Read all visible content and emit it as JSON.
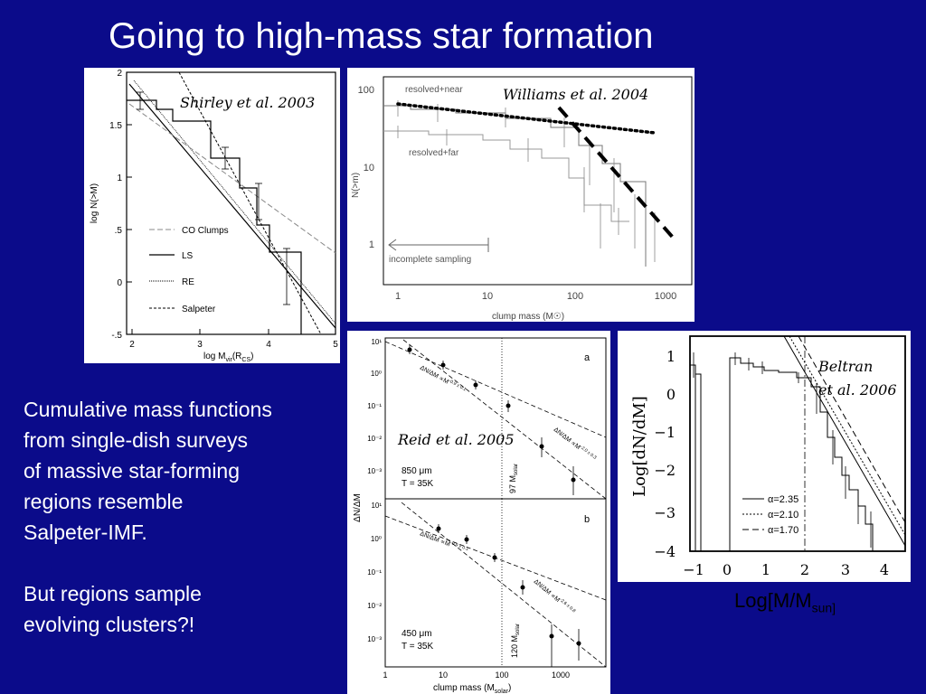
{
  "slide": {
    "title": "Going to high-mass star formation",
    "text": {
      "line1": "Cumulative mass functions",
      "line2": "from single-dish surveys",
      "line3": "of massive star-forming",
      "line4": "regions resemble",
      "line5": "Salpeter-IMF.",
      "line6": "But regions sample",
      "line7": "evolving clusters?!"
    },
    "beltran_xcaption": {
      "main": "Log[M/M",
      "sub": "sun]"
    }
  },
  "panels": {
    "shirley": {
      "citation": "Shirley et al. 2003",
      "ylabel": "log N(>M)",
      "xlabel_main": "log  M",
      "xlabel_sub": "vir",
      "xlabel_tail": "(R",
      "xlabel_sub2": "CS",
      "xlabel_close": ")",
      "yticks": [
        "2",
        "1.5",
        "1",
        ".5",
        "0",
        "-.5"
      ],
      "xticks": [
        "2",
        "3",
        "4",
        "5"
      ],
      "legend": [
        "CO Clumps",
        "LS",
        "RE",
        "Salpeter"
      ]
    },
    "williams": {
      "citation": "Williams et al. 2004",
      "ylabel": "N(>m)",
      "xlabel": "clump mass (M",
      "xlabel_sun": "☉",
      "xlabel_close": ")",
      "yticks": [
        "100",
        "10",
        "1"
      ],
      "xticks": [
        "1",
        "10",
        "100",
        "1000"
      ],
      "label_near": "resolved+near",
      "label_far": "resolved+far",
      "label_incomplete": "incomplete sampling"
    },
    "reid": {
      "citation": "Reid et al. 2005",
      "ylabel": "ΔN/ΔM",
      "xlabel": "clump mass (M",
      "xlabel_sub": "solar",
      "xlabel_close": ")",
      "xticks": [
        "1",
        "10",
        "100",
        "1000"
      ],
      "a": {
        "letter": "a",
        "fit1": "ΔN/ΔM ∝M",
        "fit1_exp": "-0.9 ± 0.1",
        "fit2": "ΔN/ΔM ∝M",
        "fit2_exp": "-2.0 ± 0.3",
        "wavelength": "850 μm",
        "temperature": "T = 35K",
        "break": "97 M",
        "break_sub": "solar",
        "yticks": [
          "10¹",
          "10⁰",
          "10⁻¹",
          "10⁻²",
          "10⁻³"
        ]
      },
      "b": {
        "letter": "b",
        "fit1": "ΔN/ΔM ∝M",
        "fit1_exp": "-0.9 ± 0.1",
        "fit2": "ΔN/ΔM ∝M",
        "fit2_exp": "-2.6 ± 0.8",
        "wavelength": "450 μm",
        "temperature": "T = 35K",
        "break": "120 M",
        "break_sub": "solar",
        "yticks": [
          "10¹",
          "10⁰",
          "10⁻¹",
          "10⁻²",
          "10⁻³"
        ]
      }
    },
    "beltran": {
      "citation_line1": "Beltran",
      "citation_line2": "et al. 2006",
      "ylabel": "Log[dN/dM]",
      "yticks": [
        "1",
        "0",
        "−1",
        "−2",
        "−3",
        "−4"
      ],
      "xticks": [
        "−1",
        "0",
        "1",
        "2",
        "3",
        "4"
      ],
      "legend": [
        "α=2.35",
        "α=2.10",
        "α=1.70"
      ]
    }
  }
}
